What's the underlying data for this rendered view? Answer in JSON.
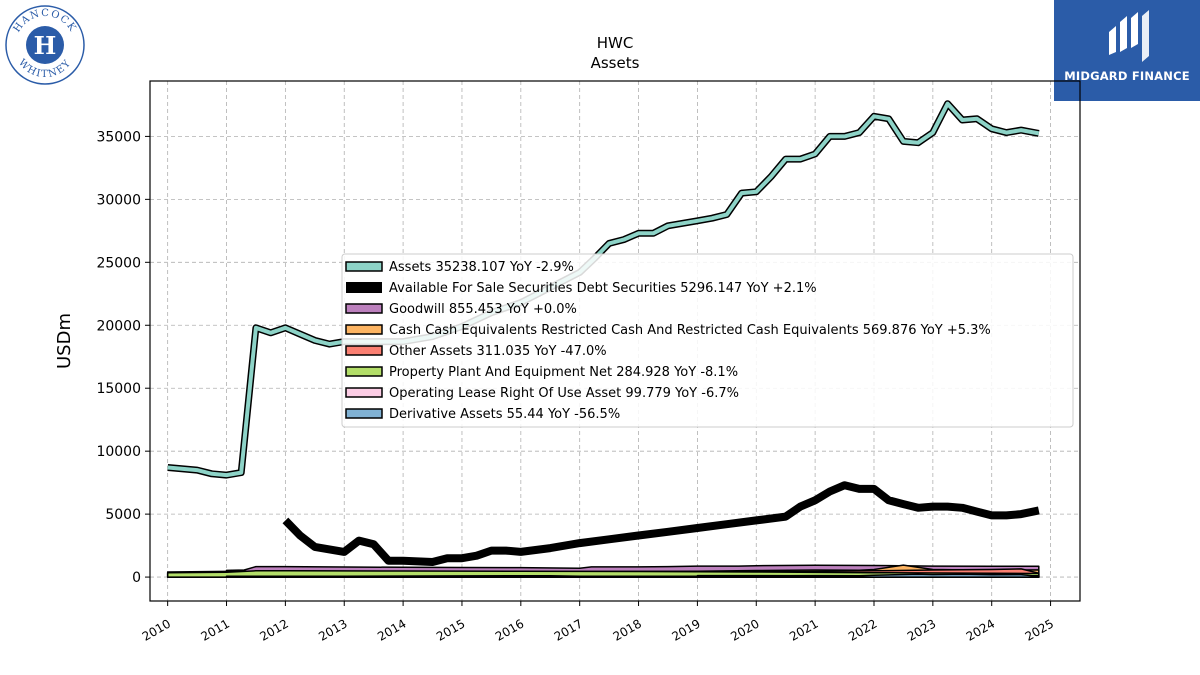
{
  "logos": {
    "left_text_top": "HANCOCK",
    "left_text_bottom": "WHITNEY",
    "right_text": "MIDGARD FINANCE"
  },
  "chart_data": {
    "type": "line",
    "title": "HWC",
    "subtitle": "Assets",
    "xlabel": "",
    "ylabel": "USDm",
    "xlim": [
      2009.7,
      2025.5
    ],
    "ylim": [
      -1900,
      39400
    ],
    "x_ticks": [
      "2010",
      "2011",
      "2012",
      "2013",
      "2014",
      "2015",
      "2016",
      "2017",
      "2018",
      "2019",
      "2020",
      "2021",
      "2022",
      "2023",
      "2024",
      "2025"
    ],
    "y_ticks": [
      0,
      5000,
      10000,
      15000,
      20000,
      25000,
      30000,
      35000
    ],
    "grid": true,
    "legend_position": "center-right",
    "series": [
      {
        "name": "Assets",
        "legend": "Assets  35238.107 YoY -2.9%",
        "color": "#8dd3c7",
        "style": "outline",
        "points": [
          [
            2010,
            8700
          ],
          [
            2010.5,
            8500
          ],
          [
            2010.75,
            8200
          ],
          [
            2011,
            8100
          ],
          [
            2011.25,
            8300
          ],
          [
            2011.5,
            19800
          ],
          [
            2011.75,
            19400
          ],
          [
            2012,
            19800
          ],
          [
            2012.25,
            19300
          ],
          [
            2012.5,
            18800
          ],
          [
            2012.75,
            18500
          ],
          [
            2013,
            18700
          ],
          [
            2013.5,
            18700
          ],
          [
            2014,
            18700
          ],
          [
            2014.5,
            19100
          ],
          [
            2015,
            19900
          ],
          [
            2015.5,
            21000
          ],
          [
            2016,
            21800
          ],
          [
            2016.5,
            23000
          ],
          [
            2017,
            24200
          ],
          [
            2017.25,
            25300
          ],
          [
            2017.5,
            26500
          ],
          [
            2017.75,
            26800
          ],
          [
            2018,
            27300
          ],
          [
            2018.25,
            27300
          ],
          [
            2018.5,
            27900
          ],
          [
            2018.75,
            28100
          ],
          [
            2019,
            28300
          ],
          [
            2019.25,
            28500
          ],
          [
            2019.5,
            28800
          ],
          [
            2019.75,
            30500
          ],
          [
            2020,
            30600
          ],
          [
            2020.25,
            31800
          ],
          [
            2020.5,
            33200
          ],
          [
            2020.75,
            33200
          ],
          [
            2021,
            33600
          ],
          [
            2021.25,
            35000
          ],
          [
            2021.5,
            35000
          ],
          [
            2021.75,
            35300
          ],
          [
            2022,
            36600
          ],
          [
            2022.25,
            36400
          ],
          [
            2022.5,
            34600
          ],
          [
            2022.75,
            34500
          ],
          [
            2023,
            35300
          ],
          [
            2023.25,
            37600
          ],
          [
            2023.5,
            36300
          ],
          [
            2023.75,
            36400
          ],
          [
            2024,
            35600
          ],
          [
            2024.25,
            35300
          ],
          [
            2024.5,
            35500
          ],
          [
            2024.8,
            35238
          ]
        ]
      },
      {
        "name": "Available For Sale Securities Debt Securities",
        "legend": "Available For Sale Securities Debt Securities  5296.147 YoY +2.1%",
        "color": "#000000",
        "style": "thick",
        "points": [
          [
            2012,
            4500
          ],
          [
            2012.25,
            3300
          ],
          [
            2012.5,
            2400
          ],
          [
            2012.75,
            2200
          ],
          [
            2013,
            2000
          ],
          [
            2013.25,
            2900
          ],
          [
            2013.5,
            2600
          ],
          [
            2013.75,
            1300
          ],
          [
            2014,
            1300
          ],
          [
            2014.5,
            1200
          ],
          [
            2014.75,
            1500
          ],
          [
            2015,
            1500
          ],
          [
            2015.25,
            1700
          ],
          [
            2015.5,
            2100
          ],
          [
            2015.75,
            2100
          ],
          [
            2016,
            2000
          ],
          [
            2016.5,
            2300
          ],
          [
            2017,
            2700
          ],
          [
            2017.5,
            3000
          ],
          [
            2018,
            3300
          ],
          [
            2018.5,
            3600
          ],
          [
            2019,
            3900
          ],
          [
            2019.5,
            4200
          ],
          [
            2020,
            4500
          ],
          [
            2020.5,
            4800
          ],
          [
            2020.75,
            5600
          ],
          [
            2021,
            6100
          ],
          [
            2021.25,
            6800
          ],
          [
            2021.5,
            7300
          ],
          [
            2021.75,
            7000
          ],
          [
            2022,
            7000
          ],
          [
            2022.25,
            6100
          ],
          [
            2022.5,
            5800
          ],
          [
            2022.75,
            5500
          ],
          [
            2023,
            5600
          ],
          [
            2023.25,
            5600
          ],
          [
            2023.5,
            5500
          ],
          [
            2023.75,
            5200
          ],
          [
            2024,
            4900
          ],
          [
            2024.25,
            4900
          ],
          [
            2024.5,
            5000
          ],
          [
            2024.8,
            5296
          ]
        ]
      },
      {
        "name": "Goodwill",
        "legend": "Goodwill  855.453 YoY +0.0%",
        "color": "#bc80bd",
        "style": "area",
        "points": [
          [
            2011,
            530
          ],
          [
            2011.3,
            560
          ],
          [
            2011.5,
            830
          ],
          [
            2012,
            830
          ],
          [
            2013,
            800
          ],
          [
            2014,
            780
          ],
          [
            2015,
            760
          ],
          [
            2016,
            750
          ],
          [
            2017,
            700
          ],
          [
            2017.2,
            810
          ],
          [
            2018,
            810
          ],
          [
            2018.5,
            830
          ],
          [
            2019,
            870
          ],
          [
            2019.7,
            870
          ],
          [
            2020,
            900
          ],
          [
            2021,
            940
          ],
          [
            2022,
            920
          ],
          [
            2023,
            870
          ],
          [
            2024,
            860
          ],
          [
            2024.8,
            855
          ]
        ]
      },
      {
        "name": "Cash Cash Equivalents Restricted Cash And Restricted Cash Equivalents",
        "legend": "Cash Cash Equivalents Restricted Cash And Restricted Cash Equivalents  569.876 YoY +5.3%",
        "color": "#fdb462",
        "style": "area",
        "points": [
          [
            2010,
            400
          ],
          [
            2011,
            450
          ],
          [
            2012,
            480
          ],
          [
            2014,
            450
          ],
          [
            2016,
            430
          ],
          [
            2018,
            450
          ],
          [
            2019,
            470
          ],
          [
            2020,
            520
          ],
          [
            2021,
            560
          ],
          [
            2021.75,
            540
          ],
          [
            2022,
            600
          ],
          [
            2022.5,
            950
          ],
          [
            2023,
            600
          ],
          [
            2024,
            550
          ],
          [
            2024.8,
            570
          ]
        ]
      },
      {
        "name": "Other Assets",
        "legend": "Other Assets  311.035 YoY -47.0%",
        "color": "#fb8072",
        "style": "area",
        "points": [
          [
            2010,
            300
          ],
          [
            2011,
            300
          ],
          [
            2012,
            320
          ],
          [
            2014,
            330
          ],
          [
            2016,
            350
          ],
          [
            2018,
            370
          ],
          [
            2020,
            420
          ],
          [
            2021,
            450
          ],
          [
            2022,
            500
          ],
          [
            2023,
            560
          ],
          [
            2024,
            600
          ],
          [
            2024.5,
            650
          ],
          [
            2024.8,
            311
          ]
        ]
      },
      {
        "name": "Property Plant And Equipment Net",
        "legend": "Property Plant And Equipment Net  284.928 YoY -8.1%",
        "color": "#b3de69",
        "style": "area",
        "points": [
          [
            2010,
            350
          ],
          [
            2011,
            380
          ],
          [
            2011.5,
            500
          ],
          [
            2012,
            500
          ],
          [
            2014,
            480
          ],
          [
            2016,
            460
          ],
          [
            2018,
            440
          ],
          [
            2020,
            400
          ],
          [
            2022,
            350
          ],
          [
            2024,
            300
          ],
          [
            2024.8,
            285
          ]
        ]
      },
      {
        "name": "Operating Lease Right Of Use Asset",
        "legend": "Operating Lease Right Of Use Asset  99.779 YoY -6.7%",
        "color": "#fccde5",
        "style": "area",
        "points": [
          [
            2019,
            120
          ],
          [
            2020,
            115
          ],
          [
            2021,
            110
          ],
          [
            2022,
            108
          ],
          [
            2023,
            105
          ],
          [
            2024,
            102
          ],
          [
            2024.8,
            100
          ]
        ]
      },
      {
        "name": "Derivative Assets",
        "legend": "Derivative Assets  55.44 YoY -56.5%",
        "color": "#80b1d3",
        "style": "area",
        "points": [
          [
            2011,
            60
          ],
          [
            2013,
            70
          ],
          [
            2015,
            90
          ],
          [
            2016.5,
            110
          ],
          [
            2017,
            60
          ],
          [
            2019,
            70
          ],
          [
            2020,
            90
          ],
          [
            2021,
            120
          ],
          [
            2021.75,
            110
          ],
          [
            2022,
            150
          ],
          [
            2022.75,
            220
          ],
          [
            2023,
            200
          ],
          [
            2023.5,
            230
          ],
          [
            2024,
            180
          ],
          [
            2024.5,
            200
          ],
          [
            2024.8,
            55
          ]
        ]
      }
    ]
  }
}
